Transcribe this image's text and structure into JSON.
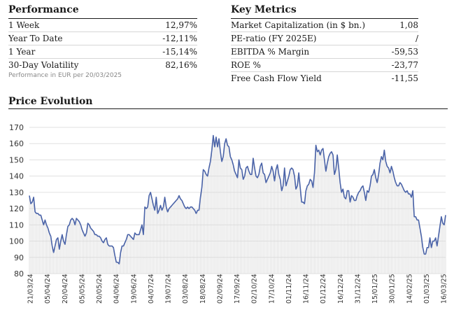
{
  "performance": {
    "title": "Performance",
    "rows": [
      {
        "label": "1 Week",
        "value": "12,97%"
      },
      {
        "label": "Year To Date",
        "value": "-12,11%"
      },
      {
        "label": "1 Year",
        "value": "-15,14%"
      },
      {
        "label": "30-Day Volatility",
        "value": "82,16%"
      }
    ],
    "note": "Performance in EUR per 20/03/2025"
  },
  "key_metrics": {
    "title": "Key Metrics",
    "rows": [
      {
        "label": "Market Capitalization (in $ bn.)",
        "value": "1,08"
      },
      {
        "label": "PE-ratio (FY 2025E)",
        "value": "/"
      },
      {
        "label": "EBITDA % Margin",
        "value": "-59,53"
      },
      {
        "label": "ROE %",
        "value": "-23,77"
      },
      {
        "label": "Free Cash Flow Yield",
        "value": "-11,55"
      }
    ]
  },
  "price_section": {
    "title": "Price Evolution"
  },
  "colors": {
    "line": "#4a63a8",
    "fill": "#d9d9d9",
    "grid": "#e0e0e0",
    "text": "#1a1a1a"
  },
  "chart_data": {
    "type": "area",
    "title": "Price Evolution",
    "ylim": [
      80,
      170
    ],
    "yticks": [
      80,
      90,
      100,
      110,
      120,
      130,
      140,
      150,
      160,
      170
    ],
    "grid": "horizontal",
    "xticks": [
      "21/03/24",
      "05/04/24",
      "20/04/24",
      "05/05/24",
      "20/05/24",
      "04/06/24",
      "19/06/24",
      "04/07/24",
      "19/07/24",
      "03/08/24",
      "18/08/24",
      "02/09/24",
      "17/09/24",
      "02/10/24",
      "17/10/24",
      "01/11/24",
      "16/11/24",
      "01/12/24",
      "16/12/24",
      "31/12/24",
      "15/01/25",
      "30/01/25",
      "14/02/25",
      "01/03/25",
      "16/03/25"
    ],
    "series": [
      {
        "values": [
          128,
          123,
          124,
          127,
          118,
          117,
          117,
          116,
          116,
          113,
          110,
          113,
          110,
          108,
          105,
          103,
          97,
          93,
          97,
          101,
          102,
          95,
          100,
          104,
          100,
          98,
          104,
          109,
          110,
          113,
          114,
          113,
          110,
          114,
          113,
          112,
          110,
          107,
          105,
          103,
          105,
          111,
          110,
          108,
          107,
          106,
          104,
          104,
          103,
          103,
          102,
          100,
          99,
          101,
          102,
          98,
          97,
          97,
          97,
          96,
          91,
          87,
          87,
          86,
          93,
          97,
          97,
          99,
          101,
          104,
          104,
          103,
          102,
          101,
          105,
          104,
          104,
          104,
          107,
          110,
          104,
          121,
          120,
          121,
          128,
          130,
          126,
          122,
          119,
          127,
          117,
          119,
          122,
          119,
          121,
          127,
          121,
          118,
          120,
          121,
          122,
          123,
          124,
          125,
          126,
          128,
          126,
          125,
          123,
          121,
          120,
          121,
          120,
          121,
          121,
          120,
          119,
          117,
          119,
          119,
          127,
          133,
          144,
          143,
          141,
          140,
          145,
          149,
          156,
          165,
          158,
          164,
          158,
          163,
          155,
          149,
          152,
          160,
          163,
          159,
          158,
          152,
          150,
          147,
          143,
          141,
          139,
          150,
          145,
          144,
          138,
          140,
          145,
          146,
          143,
          141,
          141,
          151,
          145,
          140,
          139,
          141,
          146,
          148,
          142,
          141,
          136,
          138,
          140,
          142,
          146,
          143,
          137,
          144,
          147,
          141,
          138,
          131,
          134,
          145,
          134,
          137,
          140,
          144,
          145,
          144,
          140,
          132,
          134,
          142,
          133,
          124,
          124,
          123,
          131,
          134,
          135,
          138,
          137,
          133,
          142,
          159,
          155,
          156,
          153,
          156,
          157,
          150,
          143,
          148,
          152,
          154,
          155,
          153,
          141,
          144,
          153,
          145,
          136,
          130,
          132,
          127,
          126,
          131,
          131,
          124,
          128,
          127,
          125,
          125,
          128,
          130,
          131,
          133,
          134,
          130,
          125,
          131,
          130,
          134,
          140,
          141,
          144,
          139,
          136,
          141,
          148,
          152,
          150,
          156,
          149,
          146,
          145,
          142,
          146,
          143,
          139,
          136,
          134,
          134,
          136,
          135,
          133,
          131,
          130,
          131,
          129,
          129,
          127,
          131,
          115,
          115,
          113,
          113,
          108,
          103,
          96,
          92,
          92,
          96,
          96,
          102,
          96,
          100,
          100,
          102,
          97,
          103,
          109,
          115,
          111,
          110,
          116
        ]
      }
    ]
  }
}
